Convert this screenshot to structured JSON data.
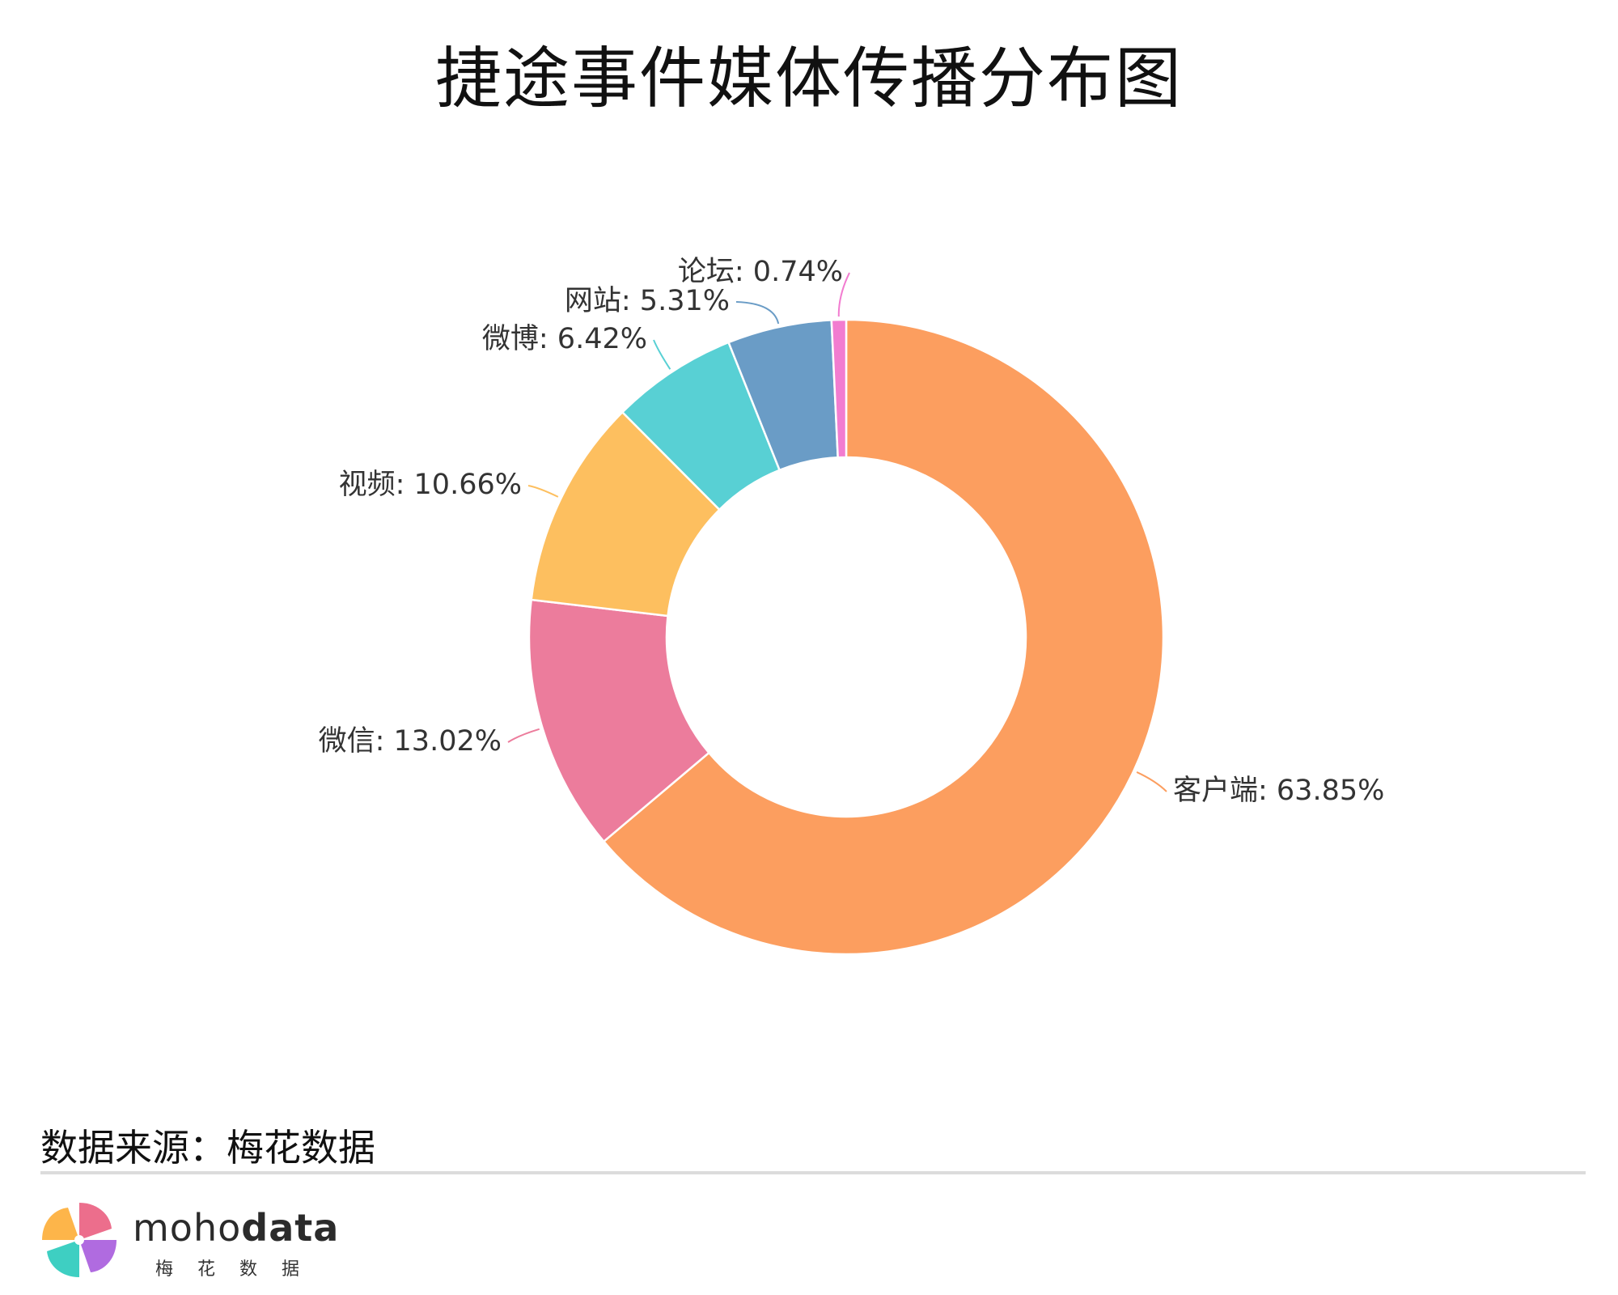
{
  "title": "捷途事件媒体传播分布图",
  "source": "数据来源：梅花数据",
  "brand": {
    "name_light": "moho",
    "name_bold": "data",
    "name_cn": "梅花数据"
  },
  "chart_data": {
    "type": "pie",
    "donut": true,
    "title": "捷途事件媒体传播分布图",
    "slices": [
      {
        "label": "客户端",
        "value": 63.85,
        "display": "客户端: 63.85%",
        "color": "#FC9E5F"
      },
      {
        "label": "微信",
        "value": 13.02,
        "display": "微信: 13.02%",
        "color": "#EC7C9C"
      },
      {
        "label": "视频",
        "value": 10.66,
        "display": "视频: 10.66%",
        "color": "#FDBF5F"
      },
      {
        "label": "微博",
        "value": 6.42,
        "display": "微博: 6.42%",
        "color": "#58D0D4"
      },
      {
        "label": "网站",
        "value": 5.31,
        "display": "网站: 5.31%",
        "color": "#6A9CC6"
      },
      {
        "label": "论坛",
        "value": 0.74,
        "display": "论坛: 0.74%",
        "color": "#F27CD0"
      }
    ],
    "legend": "none"
  }
}
